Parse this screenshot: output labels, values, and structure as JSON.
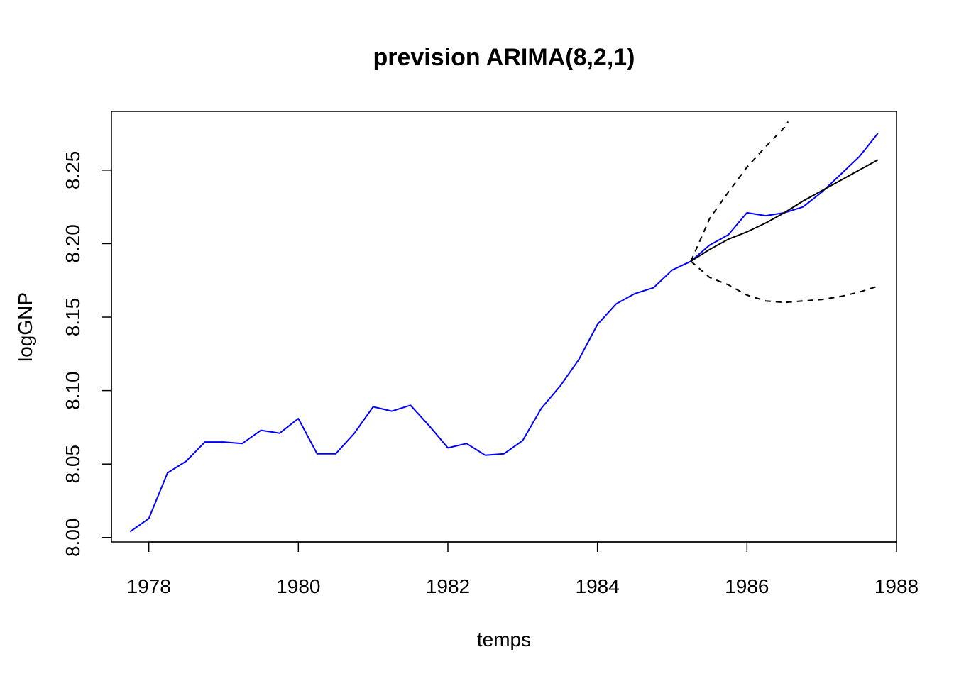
{
  "chart_data": {
    "type": "line",
    "title": "prevision ARIMA(8,2,1)",
    "xlabel": "temps",
    "ylabel": "logGNP",
    "xlim": [
      1977.5,
      1988.0
    ],
    "ylim": [
      7.997,
      8.29
    ],
    "xticks": [
      "1978",
      "1980",
      "1982",
      "1984",
      "1986",
      "1988"
    ],
    "yticks": [
      "8.00",
      "8.05",
      "8.10",
      "8.15",
      "8.20",
      "8.25"
    ],
    "grid": false,
    "legend": "none",
    "series": [
      {
        "role": "observed",
        "color": "#0000ff",
        "style": "solid",
        "x": [
          1977.75,
          1978.0,
          1978.25,
          1978.5,
          1978.75,
          1979.0,
          1979.25,
          1979.5,
          1979.75,
          1980.0,
          1980.25,
          1980.5,
          1980.75,
          1981.0,
          1981.25,
          1981.5,
          1981.75,
          1982.0,
          1982.25,
          1982.5,
          1982.75,
          1983.0,
          1983.25,
          1983.5,
          1983.75,
          1984.0,
          1984.25,
          1984.5,
          1984.75,
          1985.0,
          1985.25,
          1985.5,
          1985.75,
          1986.0,
          1986.25,
          1986.5,
          1986.75,
          1987.0,
          1987.25,
          1987.5,
          1987.75
        ],
        "y": [
          8.004,
          8.013,
          8.044,
          8.052,
          8.065,
          8.065,
          8.064,
          8.073,
          8.071,
          8.081,
          8.057,
          8.057,
          8.071,
          8.089,
          8.086,
          8.09,
          8.076,
          8.061,
          8.064,
          8.056,
          8.057,
          8.066,
          8.088,
          8.103,
          8.121,
          8.145,
          8.159,
          8.166,
          8.17,
          8.182,
          8.188,
          8.199,
          8.206,
          8.221,
          8.219,
          8.221,
          8.225,
          8.235,
          8.247,
          8.259,
          8.275
        ]
      },
      {
        "role": "forecast",
        "color": "#000000",
        "style": "solid",
        "x": [
          1985.25,
          1985.5,
          1985.75,
          1986.0,
          1986.25,
          1986.5,
          1986.75,
          1987.0,
          1987.25,
          1987.5,
          1987.75
        ],
        "y": [
          8.188,
          8.196,
          8.203,
          8.208,
          8.214,
          8.221,
          8.229,
          8.236,
          8.243,
          8.25,
          8.257
        ]
      },
      {
        "role": "upper-bound",
        "color": "#000000",
        "style": "dashed",
        "x": [
          1985.25,
          1985.5,
          1985.75,
          1986.0,
          1986.25,
          1986.5,
          1986.55
        ],
        "y": [
          8.188,
          8.217,
          8.235,
          8.252,
          8.266,
          8.279,
          8.283
        ]
      },
      {
        "role": "lower-bound",
        "color": "#000000",
        "style": "dashed",
        "x": [
          1985.25,
          1985.5,
          1985.75,
          1986.0,
          1986.25,
          1986.5,
          1986.75,
          1987.0,
          1987.25,
          1987.5,
          1987.75
        ],
        "y": [
          8.188,
          8.177,
          8.172,
          8.165,
          8.161,
          8.16,
          8.161,
          8.162,
          8.164,
          8.167,
          8.171
        ]
      }
    ]
  }
}
